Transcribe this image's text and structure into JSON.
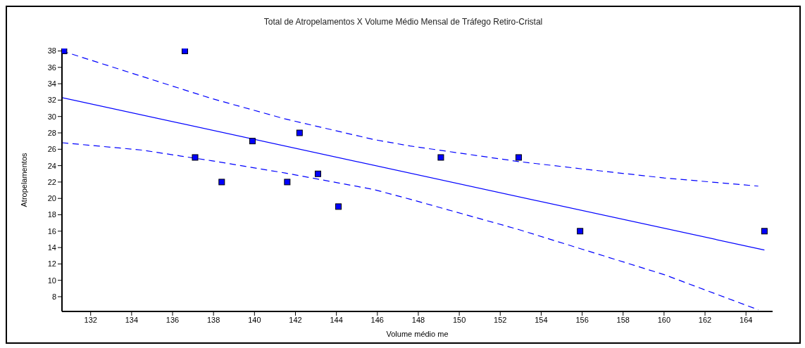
{
  "chart_data": {
    "type": "scatter",
    "title": "Total de Atropelamentos X Volume Médio Mensal de Tráfego  Retiro-Cristal",
    "xlabel": "Volume médio me",
    "ylabel": "Atropelamentos",
    "xlim": [
      130.6,
      165.3
    ],
    "xticks": [
      132,
      134,
      136,
      138,
      140,
      142,
      144,
      146,
      148,
      150,
      152,
      154,
      156,
      158,
      160,
      162,
      164
    ],
    "ylim": [
      6.2,
      38.3
    ],
    "yticks": [
      8,
      10,
      12,
      14,
      16,
      18,
      20,
      22,
      24,
      26,
      28,
      30,
      32,
      34,
      36,
      38
    ],
    "grid": false,
    "legend": false,
    "series": [
      {
        "type": "line",
        "color": "#0000ff",
        "line_style": "dashed",
        "marker": "none",
        "x": [
          130.6,
          134.5,
          137.9,
          141.5,
          145.8,
          147.6,
          152.9,
          156,
          160,
          164.6
        ],
        "values": [
          38,
          34.9,
          32.2,
          29.7,
          27.2,
          26.4,
          24.5,
          23.6,
          22.5,
          21.5
        ]
      },
      {
        "type": "line",
        "color": "#0000ff",
        "line_style": "solid",
        "marker": "none",
        "x": [
          130.6,
          164.9
        ],
        "values": [
          32.3,
          13.7
        ]
      },
      {
        "type": "line",
        "color": "#0000ff",
        "line_style": "dashed",
        "marker": "none",
        "x": [
          130.6,
          134.5,
          137.9,
          141.5,
          145.8,
          147.6,
          152.9,
          156,
          160,
          164.6
        ],
        "values": [
          26.8,
          25.9,
          24.6,
          23.1,
          21.1,
          19.9,
          16.2,
          13.8,
          10.7,
          6.4
        ]
      },
      {
        "color": "#0000ff",
        "marker": "square",
        "x": [
          130.7,
          136.6,
          137.1,
          138.4,
          139.9,
          141.6,
          142.2,
          143.1,
          144.1,
          149.1,
          152.9,
          155.9,
          164.9
        ],
        "values": [
          38,
          38,
          25,
          22,
          27,
          22,
          28,
          23,
          19,
          25,
          25,
          16,
          16
        ]
      }
    ]
  }
}
